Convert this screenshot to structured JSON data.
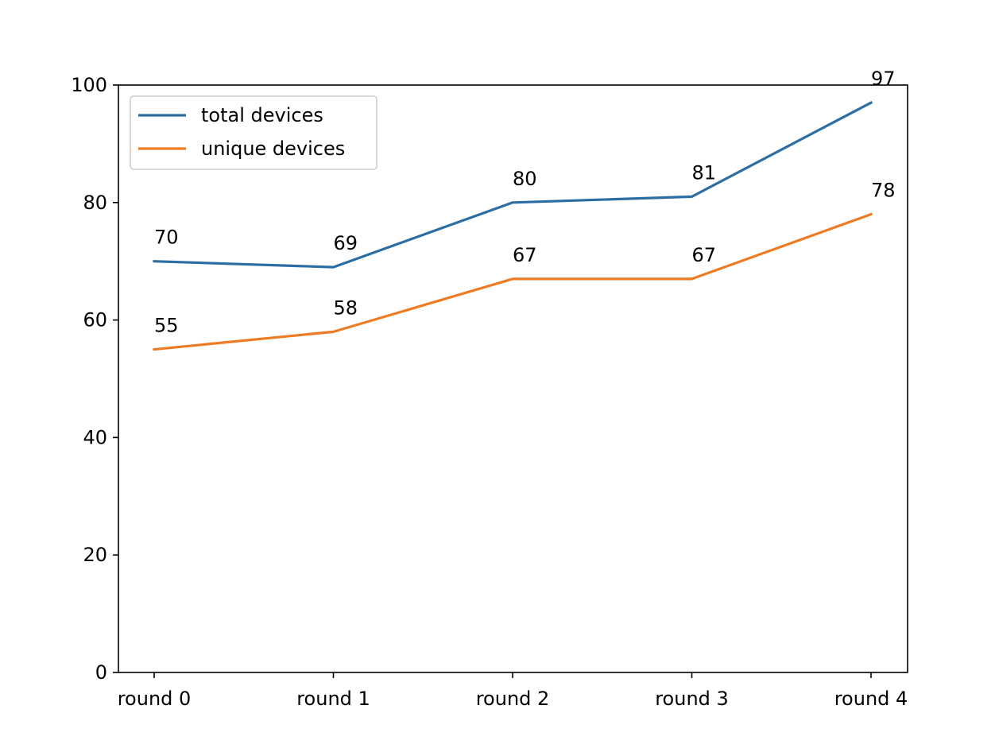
{
  "chart_data": {
    "type": "line",
    "categories": [
      "round 0",
      "round 1",
      "round 2",
      "round 3",
      "round 4"
    ],
    "series": [
      {
        "name": "total devices",
        "values": [
          70,
          69,
          80,
          81,
          97
        ],
        "color": "#2c6ea4"
      },
      {
        "name": "unique devices",
        "values": [
          55,
          58,
          67,
          67,
          78
        ],
        "color": "#ee7b22"
      }
    ],
    "title": "",
    "xlabel": "",
    "ylabel": "",
    "ylim": [
      0,
      100
    ],
    "yticks": [
      0,
      20,
      40,
      60,
      80,
      100
    ],
    "grid": false,
    "legend_position": "upper-left",
    "data_labels": true
  }
}
